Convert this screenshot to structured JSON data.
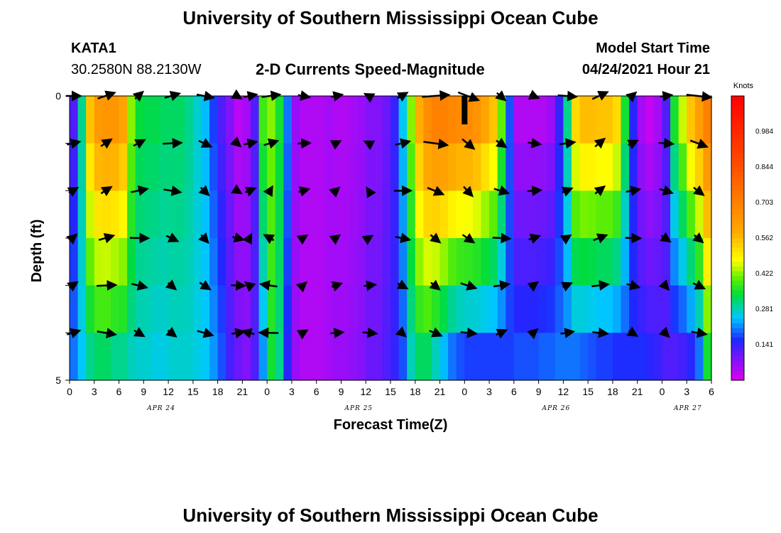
{
  "header": {
    "title": "University of Southern Mississippi Ocean Cube",
    "footer_title": "University of Southern Mississippi Ocean Cube",
    "station_id": "KATA1",
    "station_coords": "30.2580N  88.2130W",
    "plot_title": "2-D Currents Speed-Magnitude",
    "model_start_label": "Model Start Time",
    "model_start_value": "04/24/2021 Hour 21"
  },
  "chart_data": {
    "type": "heatmap",
    "title": "2-D Currents Speed-Magnitude",
    "xlabel": "Forecast Time(Z)",
    "ylabel": "Depth (ft)",
    "ylim": [
      5,
      0
    ],
    "y_tick_labels": [
      "0",
      "5"
    ],
    "x_tick_labels": [
      "0",
      "3",
      "6",
      "9",
      "12",
      "15",
      "18",
      "21",
      "0",
      "3",
      "6",
      "9",
      "12",
      "15",
      "18",
      "21",
      "0",
      "3",
      "6",
      "9",
      "12",
      "15",
      "18",
      "21",
      "0",
      "3",
      "6"
    ],
    "date_labels": [
      {
        "label": "APR 24",
        "hour": 12
      },
      {
        "label": "APR 25",
        "hour": 36
      },
      {
        "label": "APR 26",
        "hour": 60
      },
      {
        "label": "APR 27",
        "hour": 76
      }
    ],
    "time_range_hours": [
      0,
      78
    ],
    "depth_levels_ft": [
      0,
      1,
      2,
      3,
      4,
      5
    ],
    "colorbar": {
      "unit": "Knots",
      "tick_labels": [
        "0.984",
        "0.844",
        "0.703",
        "0.562",
        "0.422",
        "0.281",
        "0.141"
      ],
      "range": [
        0,
        1.125
      ]
    },
    "speed_profile": {
      "hours": [
        0,
        1,
        2,
        3,
        4,
        5,
        6,
        7,
        8,
        9,
        10,
        11,
        12,
        13,
        14,
        15,
        16,
        17,
        18,
        19,
        20,
        21,
        22,
        23,
        24,
        25,
        26,
        27,
        28,
        29,
        30,
        31,
        32,
        33,
        34,
        35,
        36,
        37,
        38,
        39,
        40,
        41,
        42,
        43,
        44,
        45,
        46,
        47,
        48,
        49,
        50,
        51,
        52,
        53,
        54,
        55,
        56,
        57,
        58,
        59,
        60,
        61,
        62,
        63,
        64,
        65,
        66,
        67,
        68,
        69,
        70,
        71,
        72,
        73,
        74,
        75,
        76,
        77,
        78
      ],
      "surface": [
        0.12,
        0.3,
        0.55,
        0.63,
        0.64,
        0.64,
        0.6,
        0.42,
        0.34,
        0.33,
        0.33,
        0.32,
        0.32,
        0.32,
        0.3,
        0.27,
        0.24,
        0.17,
        0.12,
        0.08,
        0.03,
        0.05,
        0.12,
        0.38,
        0.42,
        0.35,
        0.2,
        0.06,
        0.04,
        0.04,
        0.04,
        0.05,
        0.04,
        0.04,
        0.05,
        0.06,
        0.08,
        0.08,
        0.1,
        0.14,
        0.25,
        0.42,
        0.58,
        0.66,
        0.7,
        0.7,
        0.68,
        0.67,
        0.67,
        0.65,
        0.6,
        0.55,
        0.4,
        0.18,
        0.04,
        0.04,
        0.04,
        0.04,
        0.06,
        0.14,
        0.3,
        0.52,
        0.56,
        0.56,
        0.55,
        0.55,
        0.52,
        0.35,
        0.15,
        0.05,
        0.02,
        0.05,
        0.12,
        0.35,
        0.45,
        0.55,
        0.62,
        0.7,
        0.74
      ],
      "bottom": [
        0.2,
        0.25,
        0.3,
        0.32,
        0.32,
        0.3,
        0.3,
        0.28,
        0.27,
        0.27,
        0.26,
        0.26,
        0.27,
        0.27,
        0.27,
        0.26,
        0.25,
        0.22,
        0.18,
        0.13,
        0.1,
        0.08,
        0.12,
        0.22,
        0.35,
        0.3,
        0.15,
        0.06,
        0.04,
        0.04,
        0.04,
        0.05,
        0.06,
        0.06,
        0.07,
        0.08,
        0.1,
        0.1,
        0.12,
        0.14,
        0.18,
        0.28,
        0.32,
        0.32,
        0.28,
        0.24,
        0.2,
        0.18,
        0.17,
        0.17,
        0.17,
        0.17,
        0.17,
        0.17,
        0.18,
        0.18,
        0.18,
        0.19,
        0.19,
        0.2,
        0.2,
        0.2,
        0.19,
        0.18,
        0.17,
        0.17,
        0.16,
        0.16,
        0.16,
        0.16,
        0.15,
        0.14,
        0.12,
        0.12,
        0.13,
        0.15,
        0.2,
        0.35,
        0.55
      ]
    },
    "max_speed_marker_hour": 48,
    "vector_columns_hours": [
      0,
      4,
      8,
      12,
      16,
      20,
      21.5,
      24,
      28,
      32,
      36,
      40,
      44,
      48,
      52,
      56,
      60,
      64,
      68,
      72,
      76
    ]
  }
}
